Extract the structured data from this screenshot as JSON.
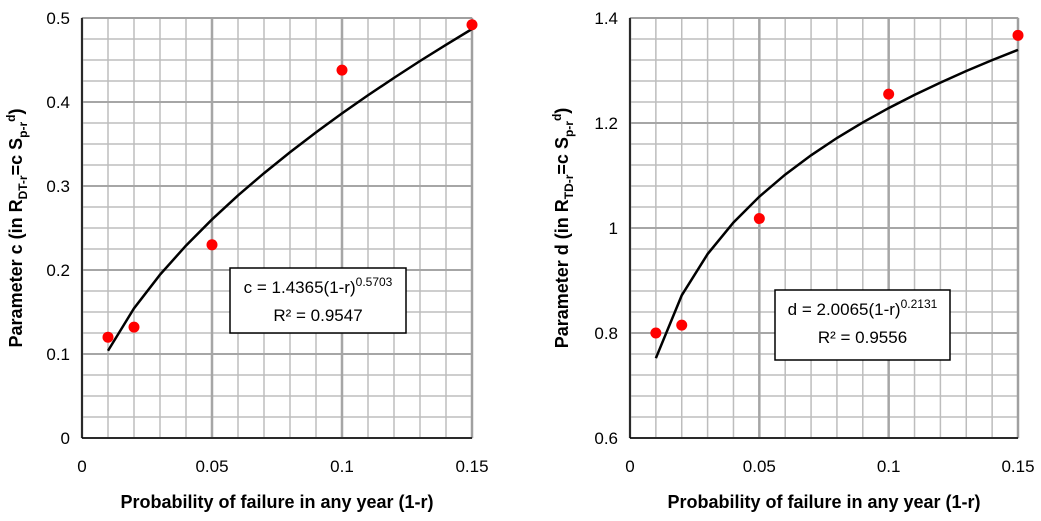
{
  "chart_data": [
    {
      "type": "scatter",
      "x": [
        0.01,
        0.02,
        0.05,
        0.1,
        0.15
      ],
      "values": [
        0.12,
        0.132,
        0.23,
        0.438,
        0.492
      ],
      "color": "#ff0000",
      "trendline": {
        "x": [
          0.01,
          0.02,
          0.03,
          0.04,
          0.05,
          0.06,
          0.07,
          0.08,
          0.09,
          0.1,
          0.11,
          0.12,
          0.13,
          0.14,
          0.15
        ],
        "values": [
          0.1039,
          0.1543,
          0.1944,
          0.2291,
          0.2602,
          0.2888,
          0.3152,
          0.3402,
          0.3639,
          0.3864,
          0.408,
          0.4287,
          0.4488,
          0.4681,
          0.4869
        ],
        "color": "#000000"
      },
      "xlabel": "Probability of failure in any year (1-r)",
      "ylabel": [
        {
          "text": "Parameter c (in R"
        },
        {
          "sub": "DT-r"
        },
        {
          "text": "=c S"
        },
        {
          "sub": "p-r"
        },
        {
          "sup": "d"
        },
        {
          "text": ")"
        }
      ],
      "annotation": [
        [
          {
            "text": "c = 1.4365(1-r)"
          },
          {
            "sup": "0.5703"
          }
        ],
        [
          {
            "text": "R² = 0.9547"
          }
        ]
      ],
      "xlim": [
        0,
        0.15
      ],
      "ylim": [
        0,
        0.5
      ],
      "xticks": [
        0,
        0.05,
        0.1,
        0.15
      ],
      "yticks": [
        0,
        0.1,
        0.2,
        0.3,
        0.4,
        0.5
      ],
      "grid": true,
      "xminor": [
        0.01,
        0.02,
        0.03,
        0.04,
        0.06,
        0.07,
        0.08,
        0.09,
        0.11,
        0.12,
        0.13,
        0.14
      ],
      "yminor": [
        0.025,
        0.05,
        0.075,
        0.125,
        0.15,
        0.175,
        0.225,
        0.25,
        0.275,
        0.325,
        0.35,
        0.375,
        0.425,
        0.45,
        0.475
      ]
    },
    {
      "type": "scatter",
      "x": [
        0.01,
        0.02,
        0.05,
        0.1,
        0.15
      ],
      "values": [
        0.8,
        0.815,
        1.018,
        1.255,
        1.367
      ],
      "color": "#ff0000",
      "trendline": {
        "x": [
          0.01,
          0.02,
          0.03,
          0.04,
          0.05,
          0.06,
          0.07,
          0.08,
          0.09,
          0.1,
          0.11,
          0.12,
          0.13,
          0.14,
          0.15
        ],
        "values": [
          0.752,
          0.8717,
          0.9504,
          1.0105,
          1.0597,
          1.1017,
          1.1385,
          1.1714,
          1.2011,
          1.2284,
          1.2536,
          1.277,
          1.299,
          1.3197,
          1.3393
        ],
        "color": "#000000"
      },
      "xlabel": "Probability of failure in any year (1-r)",
      "ylabel": [
        {
          "text": "Parameter d (in R"
        },
        {
          "sub": "TD-r"
        },
        {
          "text": "=c S"
        },
        {
          "sub": "p-r"
        },
        {
          "sup": "d"
        },
        {
          "text": ")"
        }
      ],
      "annotation": [
        [
          {
            "text": "d = 2.0065(1-r)"
          },
          {
            "sup": "0.2131"
          }
        ],
        [
          {
            "text": "R² = 0.9556"
          }
        ]
      ],
      "xlim": [
        0,
        0.15
      ],
      "ylim": [
        0.6,
        1.4
      ],
      "xticks": [
        0,
        0.05,
        0.1,
        0.15
      ],
      "yticks": [
        0.6,
        0.8,
        1,
        1.2,
        1.4
      ],
      "grid": true,
      "xminor": [
        0.01,
        0.02,
        0.03,
        0.04,
        0.06,
        0.07,
        0.08,
        0.09,
        0.11,
        0.12,
        0.13,
        0.14
      ],
      "yminor": [
        0.64,
        0.68,
        0.72,
        0.76,
        0.84,
        0.88,
        0.92,
        0.96,
        1.04,
        1.08,
        1.12,
        1.16,
        1.24,
        1.28,
        1.32,
        1.36
      ]
    }
  ]
}
